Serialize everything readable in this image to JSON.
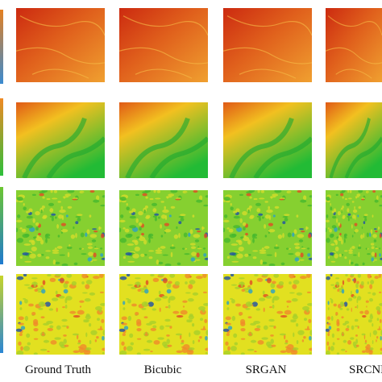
{
  "columns": [
    {
      "label": "Ground Truth"
    },
    {
      "label": "Bicubic"
    },
    {
      "label": "SRGAN"
    },
    {
      "label": "SRCNN"
    }
  ],
  "rows": [
    {
      "palette": [
        "#cc2a10",
        "#e0601c",
        "#f0a030"
      ]
    },
    {
      "palette": [
        "#e05a16",
        "#f2c020",
        "#22bb35"
      ]
    },
    {
      "palette": [
        "#46b82e",
        "#86d030",
        "#d4dc2a"
      ]
    },
    {
      "palette": [
        "#a8d02a",
        "#e2e020",
        "#f08a2a"
      ]
    }
  ],
  "colors": {
    "background": "#ffffff",
    "text": "#111111"
  }
}
